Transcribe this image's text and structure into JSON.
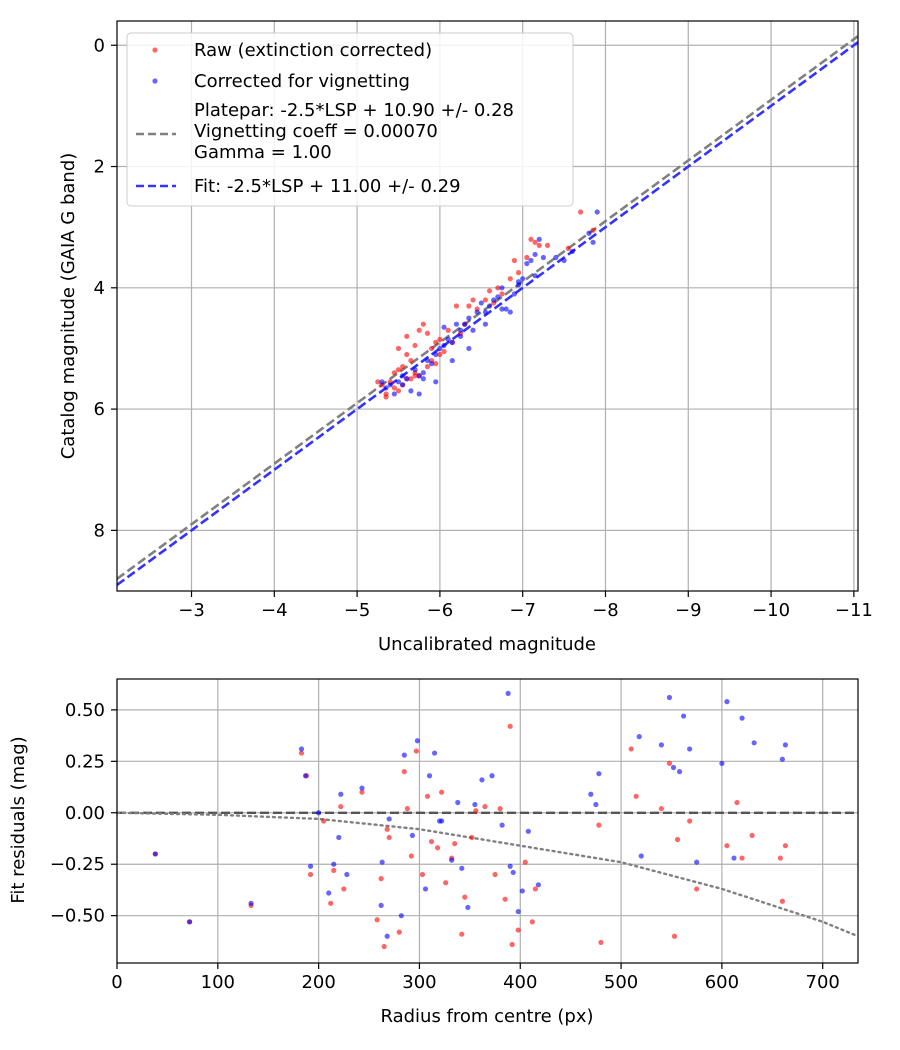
{
  "chart_data": [
    {
      "type": "scatter",
      "xlabel": "Uncalibrated magnitude",
      "ylabel": "Catalog magnitude (GAIA G band)",
      "xlim": [
        -2.1,
        -11.05
      ],
      "ylim": [
        9.0,
        -0.4
      ],
      "x_reversed": true,
      "y_reversed": true,
      "grid": true,
      "legend_position": "top-left",
      "x_ticks": [
        -3,
        -4,
        -5,
        -6,
        -7,
        -8,
        -9,
        -10,
        -11
      ],
      "x_tick_labels": [
        "−3",
        "−4",
        "−5",
        "−6",
        "−7",
        "−8",
        "−9",
        "−10",
        "−11"
      ],
      "y_ticks": [
        0,
        2,
        4,
        6,
        8
      ],
      "y_tick_labels": [
        "0",
        "2",
        "4",
        "6",
        "8"
      ],
      "series": [
        {
          "name": "Raw (extinction corrected)",
          "kind": "scatter",
          "color": "#ff0000",
          "x": [
            -5.25,
            -5.3,
            -5.35,
            -5.4,
            -5.45,
            -5.5,
            -5.55,
            -5.5,
            -5.6,
            -5.65,
            -5.7,
            -5.6,
            -5.75,
            -5.8,
            -5.85,
            -5.7,
            -5.9,
            -5.95,
            -6.0,
            -5.5,
            -5.45,
            -5.55,
            -5.65,
            -5.75,
            -5.85,
            -5.95,
            -6.05,
            -6.1,
            -6.15,
            -6.25,
            -6.3,
            -6.2,
            -6.35,
            -6.45,
            -6.55,
            -6.65,
            -6.7,
            -6.75,
            -6.85,
            -6.95,
            -7.05,
            -7.1,
            -7.2,
            -7.3,
            -7.55,
            -7.7,
            -7.85,
            -5.6,
            -5.35,
            -5.7,
            -5.9,
            -6.0,
            -6.4,
            -6.6,
            -6.9,
            -7.15
          ],
          "y": [
            5.55,
            5.6,
            5.8,
            5.55,
            5.4,
            5.35,
            5.3,
            5.0,
            5.1,
            5.2,
            4.95,
            4.8,
            4.7,
            4.6,
            4.75,
            5.4,
            5.0,
            4.9,
            5.1,
            5.7,
            5.65,
            5.6,
            5.5,
            5.45,
            5.3,
            5.25,
            5.05,
            4.7,
            4.9,
            4.75,
            4.6,
            4.3,
            4.3,
            4.35,
            4.2,
            4.25,
            4.0,
            4.1,
            3.85,
            3.75,
            3.5,
            3.2,
            3.3,
            3.3,
            3.35,
            2.75,
            3.05,
            5.5,
            5.75,
            5.45,
            5.2,
            4.85,
            4.2,
            4.05,
            3.55,
            3.25
          ]
        },
        {
          "name": "Corrected for vignetting",
          "kind": "scatter",
          "color": "#0000ff",
          "x": [
            -5.3,
            -5.35,
            -5.4,
            -5.5,
            -5.55,
            -5.6,
            -5.65,
            -5.7,
            -5.75,
            -5.8,
            -5.85,
            -5.9,
            -5.95,
            -6.0,
            -6.05,
            -6.1,
            -6.15,
            -6.2,
            -6.25,
            -6.3,
            -6.35,
            -6.4,
            -6.45,
            -6.5,
            -6.55,
            -6.6,
            -6.65,
            -6.7,
            -6.75,
            -6.8,
            -6.85,
            -6.9,
            -6.95,
            -7.0,
            -7.05,
            -7.1,
            -7.15,
            -7.2,
            -7.25,
            -7.4,
            -7.5,
            -7.6,
            -7.8,
            -7.85,
            -7.9,
            -5.45,
            -5.55,
            -5.75,
            -5.95,
            -6.15,
            -6.35,
            -6.55,
            -6.75,
            -6.95,
            -7.15,
            -5.8,
            -6.05,
            -6.25
          ],
          "y": [
            5.55,
            5.65,
            5.6,
            5.55,
            5.45,
            5.5,
            5.7,
            5.35,
            5.45,
            5.4,
            5.2,
            5.25,
            5.1,
            5.0,
            4.95,
            4.85,
            4.9,
            4.6,
            4.7,
            4.6,
            4.5,
            4.7,
            4.4,
            4.25,
            4.4,
            4.3,
            4.2,
            4.15,
            4.0,
            4.35,
            4.4,
            4.1,
            3.9,
            3.85,
            3.6,
            3.55,
            3.45,
            3.2,
            3.5,
            3.5,
            3.55,
            3.4,
            3.1,
            3.25,
            2.75,
            5.75,
            5.6,
            5.75,
            5.55,
            5.2,
            5.0,
            4.6,
            4.35,
            3.95,
            3.8,
            5.5,
            4.65,
            4.8
          ]
        },
        {
          "name": "Platepar: -2.5*LSP + 10.90 +/- 0.28\nVignetting coeff = 0.00070\nGamma = 1.00",
          "kind": "line",
          "style": "dashed",
          "color": "#808080",
          "slope": 1.0,
          "intercept": 10.9
        },
        {
          "name": "Fit: -2.5*LSP + 11.00 +/- 0.29",
          "kind": "line",
          "style": "dashed",
          "color": "#3333ff",
          "slope": 1.0,
          "intercept": 11.0
        }
      ]
    },
    {
      "type": "scatter",
      "xlabel": "Radius from centre (px)",
      "ylabel": "Fit residuals (mag)",
      "xlim": [
        0,
        735
      ],
      "ylim": [
        -0.73,
        0.65
      ],
      "grid": true,
      "x_ticks": [
        0,
        100,
        200,
        300,
        400,
        500,
        600,
        700
      ],
      "x_tick_labels": [
        "0",
        "100",
        "200",
        "300",
        "400",
        "500",
        "600",
        "700"
      ],
      "y_ticks": [
        0.5,
        0.25,
        0.0,
        -0.25,
        -0.5
      ],
      "y_tick_labels": [
        "0.50",
        "0.25",
        "0.00",
        "−0.25",
        "−0.50"
      ],
      "series": [
        {
          "kind": "scatter",
          "color": "#ff0000",
          "x": [
            38,
            72,
            133,
            183,
            188,
            192,
            205,
            212,
            215,
            222,
            225,
            243,
            258,
            262,
            265,
            268,
            270,
            280,
            285,
            288,
            292,
            297,
            303,
            308,
            312,
            318,
            322,
            326,
            332,
            335,
            342,
            345,
            352,
            356,
            365,
            375,
            380,
            385,
            390,
            392,
            398,
            405,
            412,
            415,
            478,
            480,
            510,
            515,
            540,
            548,
            553,
            556,
            568,
            575,
            605,
            615,
            620,
            630,
            658,
            660,
            663
          ],
          "y": [
            -0.2,
            -0.53,
            -0.45,
            0.29,
            0.18,
            -0.3,
            -0.04,
            -0.44,
            -0.28,
            0.03,
            -0.37,
            0.1,
            -0.52,
            -0.32,
            -0.65,
            -0.08,
            -0.12,
            -0.58,
            0.2,
            0.02,
            -0.21,
            0.3,
            -0.3,
            0.08,
            -0.14,
            -0.17,
            0.1,
            -0.34,
            -0.22,
            -0.15,
            -0.59,
            -0.41,
            -0.12,
            0.01,
            0.03,
            -0.3,
            0.02,
            -0.42,
            0.42,
            -0.64,
            -0.57,
            -0.24,
            -0.53,
            -0.37,
            -0.06,
            -0.63,
            0.31,
            0.08,
            0.02,
            0.24,
            -0.6,
            -0.13,
            -0.04,
            -0.37,
            -0.16,
            0.05,
            -0.22,
            -0.11,
            -0.22,
            -0.43,
            -0.16
          ]
        },
        {
          "kind": "scatter",
          "color": "#0000ff",
          "x": [
            38,
            72,
            133,
            183,
            187,
            192,
            200,
            210,
            215,
            220,
            222,
            228,
            243,
            262,
            263,
            268,
            270,
            282,
            285,
            293,
            298,
            306,
            310,
            315,
            320,
            322,
            332,
            338,
            342,
            348,
            355,
            362,
            372,
            382,
            388,
            390,
            393,
            398,
            402,
            408,
            418,
            470,
            475,
            478,
            518,
            520,
            540,
            548,
            552,
            558,
            562,
            568,
            575,
            600,
            605,
            612,
            620,
            632,
            660,
            663
          ],
          "y": [
            -0.2,
            -0.53,
            -0.44,
            0.31,
            0.18,
            -0.26,
            0.0,
            -0.39,
            -0.25,
            -0.12,
            0.09,
            -0.3,
            0.12,
            -0.45,
            -0.24,
            -0.6,
            -0.03,
            -0.5,
            0.28,
            -0.11,
            0.35,
            -0.37,
            0.18,
            0.29,
            -0.04,
            -0.04,
            -0.23,
            0.05,
            -0.27,
            -0.46,
            0.04,
            0.16,
            0.18,
            -0.06,
            0.58,
            -0.26,
            -0.29,
            -0.48,
            -0.38,
            -0.09,
            -0.35,
            0.09,
            0.04,
            0.19,
            0.37,
            -0.21,
            0.33,
            0.56,
            0.22,
            0.2,
            0.47,
            0.31,
            -0.24,
            0.24,
            0.54,
            -0.22,
            0.46,
            0.34,
            0.26,
            0.33
          ]
        },
        {
          "kind": "line",
          "style": "dashed",
          "color": "#555555",
          "y_value": 0.0
        },
        {
          "kind": "curve",
          "style": "dotted",
          "color": "#808080",
          "x": [
            0,
            100,
            200,
            300,
            400,
            500,
            600,
            700,
            735
          ],
          "y": [
            0.0,
            -0.01,
            -0.03,
            -0.08,
            -0.16,
            -0.24,
            -0.37,
            -0.53,
            -0.6
          ]
        }
      ]
    }
  ]
}
